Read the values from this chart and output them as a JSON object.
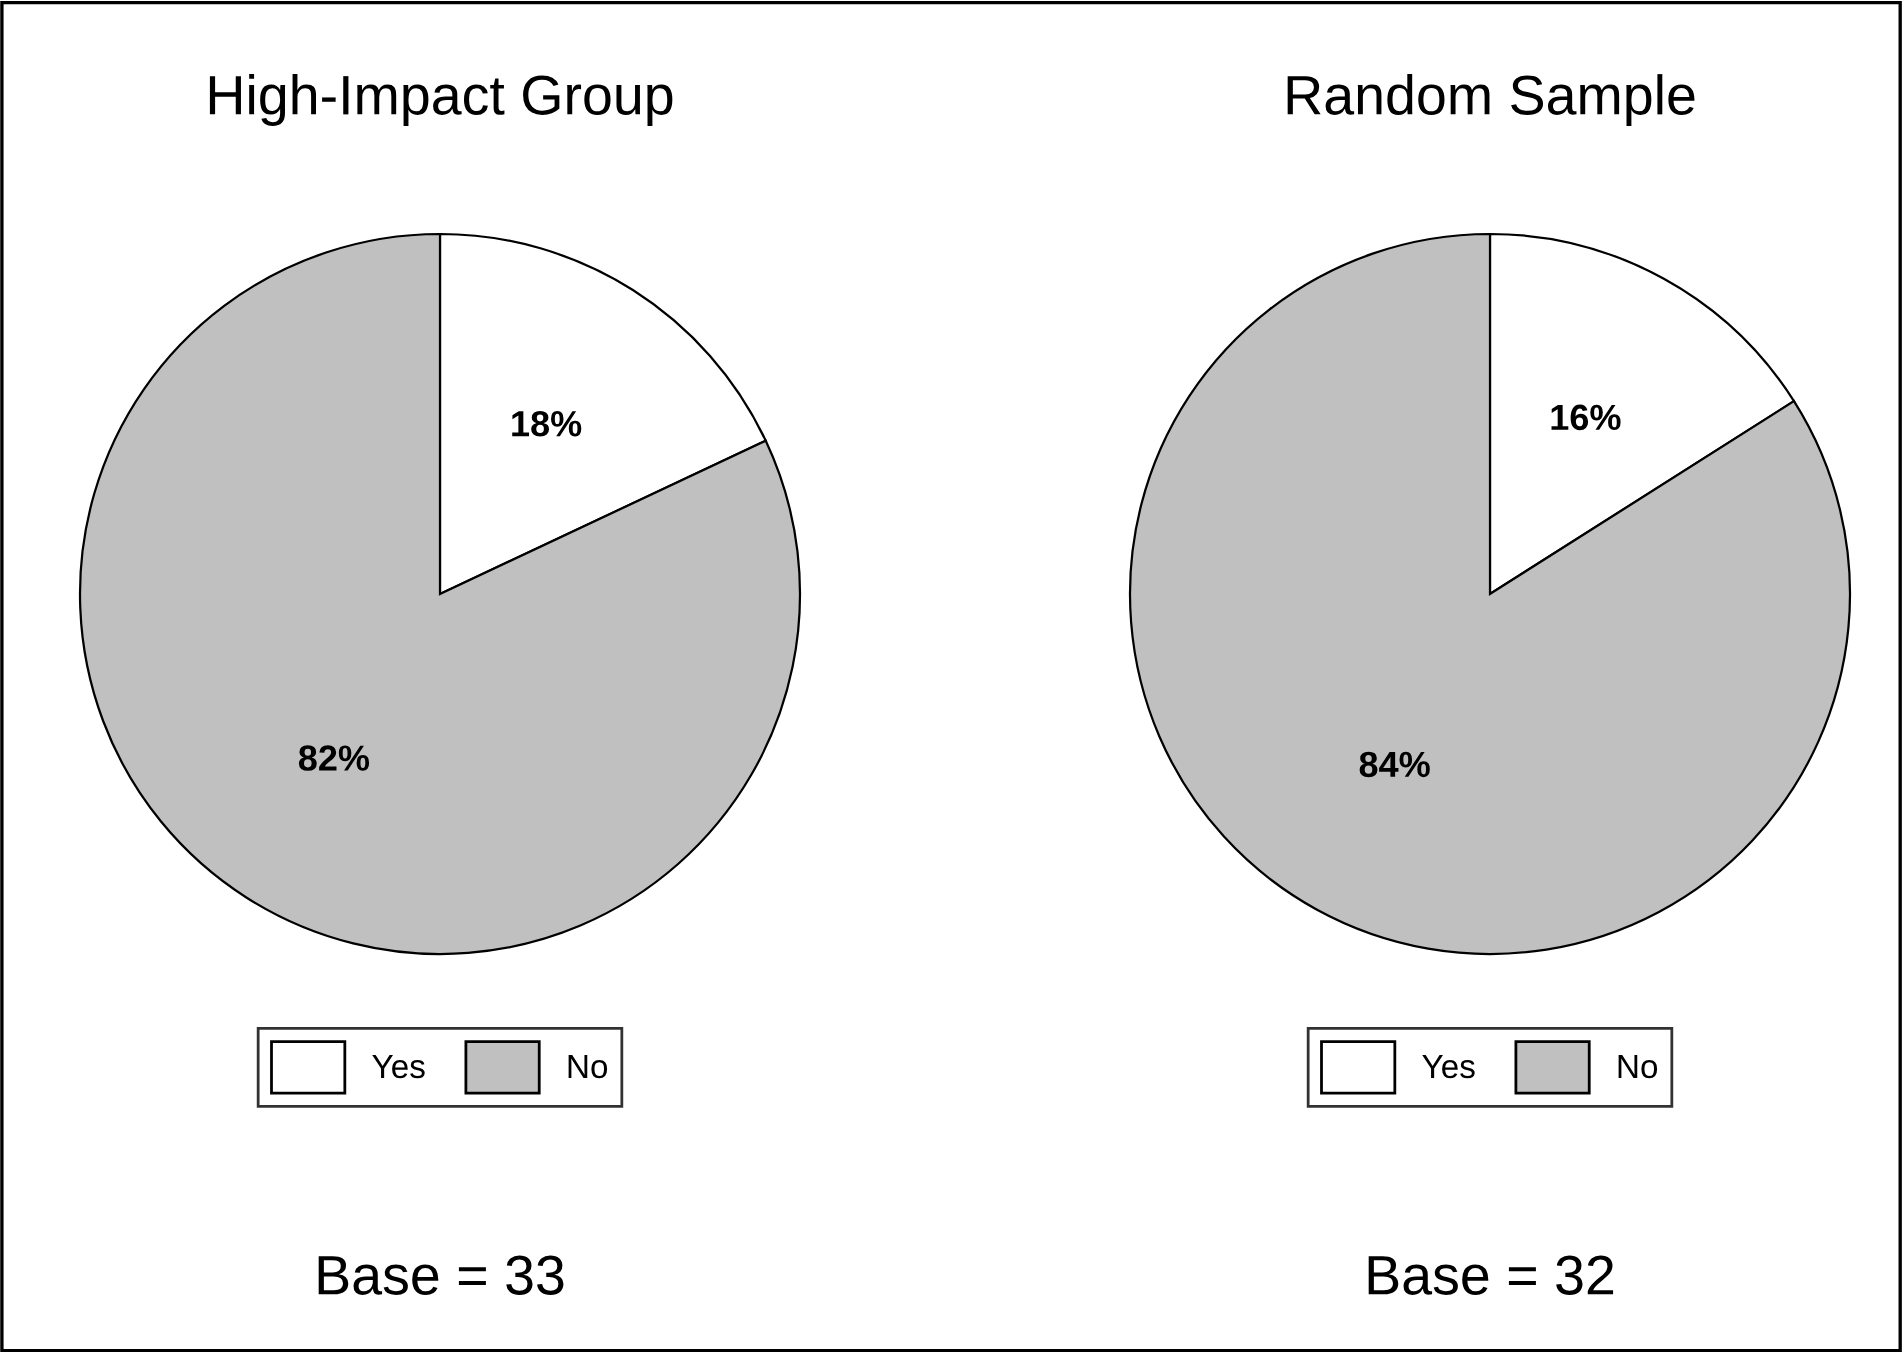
{
  "chart_data": [
    {
      "type": "pie",
      "title": "High-Impact Group",
      "categories": [
        "Yes",
        "No"
      ],
      "values": [
        18,
        82
      ],
      "colors": [
        "#ffffff",
        "#c0c0c0"
      ],
      "value_labels": [
        "18%",
        "82%"
      ],
      "legend": "bottom",
      "annotations": [
        "Base = 33"
      ]
    },
    {
      "type": "pie",
      "title": "Random Sample",
      "categories": [
        "Yes",
        "No"
      ],
      "values": [
        16,
        84
      ],
      "colors": [
        "#ffffff",
        "#c0c0c0"
      ],
      "value_labels": [
        "16%",
        "84%"
      ],
      "legend": "bottom",
      "annotations": [
        "Base = 32"
      ]
    }
  ]
}
